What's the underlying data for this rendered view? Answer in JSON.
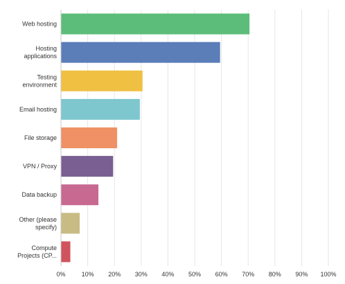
{
  "chart_data": {
    "type": "bar",
    "orientation": "horizontal",
    "title": "",
    "xlabel": "",
    "ylabel": "",
    "xlim": [
      0,
      100
    ],
    "grid": true,
    "x_ticks": [
      "0%",
      "10%",
      "20%",
      "30%",
      "40%",
      "50%",
      "60%",
      "70%",
      "80%",
      "90%",
      "100%"
    ],
    "categories": [
      [
        "Web hosting"
      ],
      [
        "Hosting",
        "applications"
      ],
      [
        "Testing",
        "environment"
      ],
      [
        "Email hosting"
      ],
      [
        "File storage"
      ],
      [
        "VPN / Proxy"
      ],
      [
        "Data backup"
      ],
      [
        "Other (please",
        "specify)"
      ],
      [
        "Compute",
        "Projects (CP..."
      ]
    ],
    "values": [
      70.5,
      59.5,
      30.5,
      29.5,
      21.0,
      19.5,
      14.0,
      7.0,
      3.5
    ],
    "colors": [
      "#5cbd7a",
      "#5b7db8",
      "#f0c043",
      "#7ec7cf",
      "#ef9164",
      "#7a5f93",
      "#c86991",
      "#c8bc84",
      "#d0545d"
    ]
  }
}
